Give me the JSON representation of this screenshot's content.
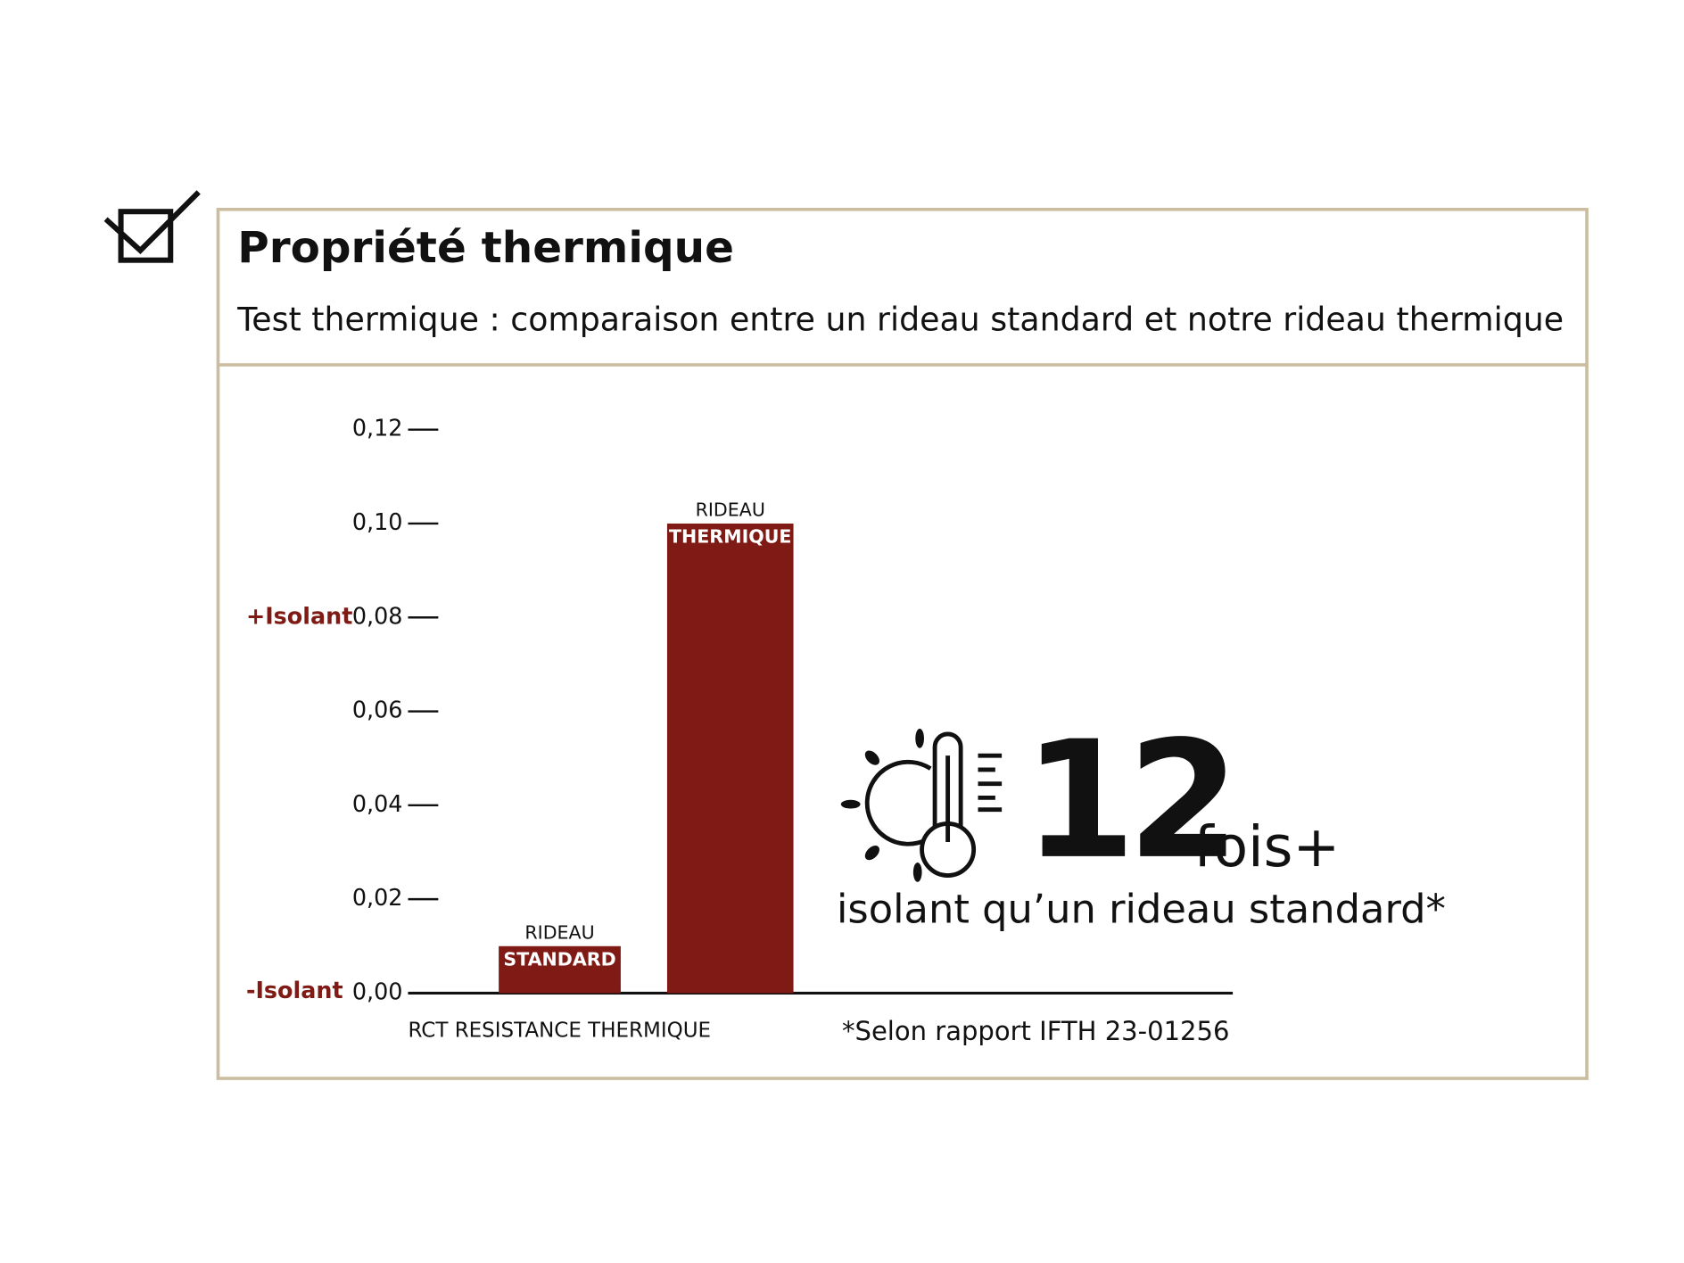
{
  "chart_data": {
    "type": "bar",
    "title": "Propriété thermique",
    "subtitle": "Test thermique : comparaison entre un rideau standard et notre rideau thermique",
    "categories": [
      [
        "RIDEAU",
        "STANDARD"
      ],
      [
        "RIDEAU",
        "THERMIQUE"
      ]
    ],
    "values": [
      0.01,
      0.1
    ],
    "color": "#7f1a14",
    "ylim": [
      0,
      0.12
    ],
    "yticks": [
      {
        "value": 0,
        "label": "0,00"
      },
      {
        "value": 0.02,
        "label": "0,02"
      },
      {
        "value": 0.04,
        "label": "0,04"
      },
      {
        "value": 0.06,
        "label": "0,06"
      },
      {
        "value": 0.08,
        "label": "0,08"
      },
      {
        "value": 0.1,
        "label": "0,10"
      },
      {
        "value": 0.12,
        "label": "0,12"
      }
    ],
    "xlabel": "RCT RESISTANCE THERMIQUE",
    "axis_annotations": {
      "high": "+Isolant",
      "low": "-Isolant"
    },
    "highlight": {
      "big": "12",
      "suffix": "fois+",
      "text": "isolant qu’un rideau standard*"
    },
    "footnote": "*Selon rapport IFTH 23-01256"
  }
}
